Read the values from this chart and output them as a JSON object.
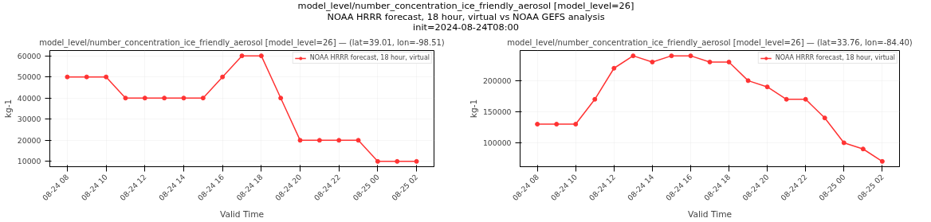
{
  "chart_data": [
    {
      "type": "line",
      "annotations": [
        "model_level/number_concentration_ice_friendly_aerosol [model_level=26]\nNOAA HRRR forecast, 18 hour, virtual vs NOAA GEFS analysis\ninit=2024-08-24T08:00"
      ],
      "title": "model_level/number_concentration_ice_friendly_aerosol [model_level=26] — (lat=39.01, lon=-98.51)",
      "xlabel": "Valid Time",
      "ylabel": "kg-1",
      "x": [
        "2024-08-24T08:00",
        "2024-08-24T09:00",
        "2024-08-24T10:00",
        "2024-08-24T11:00",
        "2024-08-24T12:00",
        "2024-08-24T13:00",
        "2024-08-24T14:00",
        "2024-08-24T15:00",
        "2024-08-24T16:00",
        "2024-08-24T17:00",
        "2024-08-24T18:00",
        "2024-08-24T19:00",
        "2024-08-24T20:00",
        "2024-08-24T21:00",
        "2024-08-24T22:00",
        "2024-08-24T23:00",
        "2024-08-25T00:00",
        "2024-08-25T01:00",
        "2024-08-25T02:00"
      ],
      "series": [
        {
          "name": "NOAA HRRR forecast, 18 hour, virtual",
          "color": "#ff3333",
          "values": [
            50000,
            50000,
            50000,
            40000,
            40000,
            40000,
            40000,
            40000,
            50000,
            60000,
            60000,
            40000,
            20000,
            20000,
            20000,
            20000,
            10000,
            10000,
            10000
          ]
        }
      ],
      "xlim": [
        "2024-08-24T07:06",
        "2024-08-25T02:54"
      ],
      "xticks": [
        {
          "value": "2024-08-24T08:00",
          "label": "08-24 08"
        },
        {
          "value": "2024-08-24T10:00",
          "label": "08-24 10"
        },
        {
          "value": "2024-08-24T12:00",
          "label": "08-24 12"
        },
        {
          "value": "2024-08-24T14:00",
          "label": "08-24 14"
        },
        {
          "value": "2024-08-24T16:00",
          "label": "08-24 16"
        },
        {
          "value": "2024-08-24T18:00",
          "label": "08-24 18"
        },
        {
          "value": "2024-08-24T20:00",
          "label": "08-24 20"
        },
        {
          "value": "2024-08-24T22:00",
          "label": "08-24 22"
        },
        {
          "value": "2024-08-25T00:00",
          "label": "08-25 00"
        },
        {
          "value": "2024-08-25T02:00",
          "label": "08-25 02"
        }
      ],
      "ylim": [
        7500,
        62500
      ],
      "yticks": [
        10000,
        20000,
        30000,
        40000,
        50000,
        60000
      ],
      "grid": true,
      "legend": "top right",
      "marker": "circle",
      "line_style": "solid"
    },
    {
      "type": "line",
      "title": "model_level/number_concentration_ice_friendly_aerosol [model_level=26] — (lat=33.76, lon=-84.40)",
      "xlabel": "Valid Time",
      "ylabel": "kg-1",
      "x": [
        "2024-08-24T08:00",
        "2024-08-24T09:00",
        "2024-08-24T10:00",
        "2024-08-24T11:00",
        "2024-08-24T12:00",
        "2024-08-24T13:00",
        "2024-08-24T14:00",
        "2024-08-24T15:00",
        "2024-08-24T16:00",
        "2024-08-24T17:00",
        "2024-08-24T18:00",
        "2024-08-24T19:00",
        "2024-08-24T20:00",
        "2024-08-24T21:00",
        "2024-08-24T22:00",
        "2024-08-24T23:00",
        "2024-08-25T00:00",
        "2024-08-25T01:00",
        "2024-08-25T02:00"
      ],
      "series": [
        {
          "name": "NOAA HRRR forecast, 18 hour, virtual",
          "color": "#ff3333",
          "values": [
            130000,
            130000,
            130000,
            170000,
            220000,
            240000,
            230000,
            240000,
            240000,
            230000,
            230000,
            200000,
            190000,
            170000,
            170000,
            140000,
            100000,
            90000,
            70000
          ]
        }
      ],
      "xlim": [
        "2024-08-24T07:06",
        "2024-08-25T02:54"
      ],
      "xticks": [
        {
          "value": "2024-08-24T08:00",
          "label": "08-24 08"
        },
        {
          "value": "2024-08-24T10:00",
          "label": "08-24 10"
        },
        {
          "value": "2024-08-24T12:00",
          "label": "08-24 12"
        },
        {
          "value": "2024-08-24T14:00",
          "label": "08-24 14"
        },
        {
          "value": "2024-08-24T16:00",
          "label": "08-24 16"
        },
        {
          "value": "2024-08-24T18:00",
          "label": "08-24 18"
        },
        {
          "value": "2024-08-24T20:00",
          "label": "08-24 20"
        },
        {
          "value": "2024-08-24T22:00",
          "label": "08-24 22"
        },
        {
          "value": "2024-08-25T00:00",
          "label": "08-25 00"
        },
        {
          "value": "2024-08-25T02:00",
          "label": "08-25 02"
        }
      ],
      "ylim": [
        61500,
        248500
      ],
      "yticks": [
        100000,
        150000,
        200000
      ],
      "grid": true,
      "legend": "top right",
      "marker": "circle",
      "line_style": "solid"
    }
  ]
}
